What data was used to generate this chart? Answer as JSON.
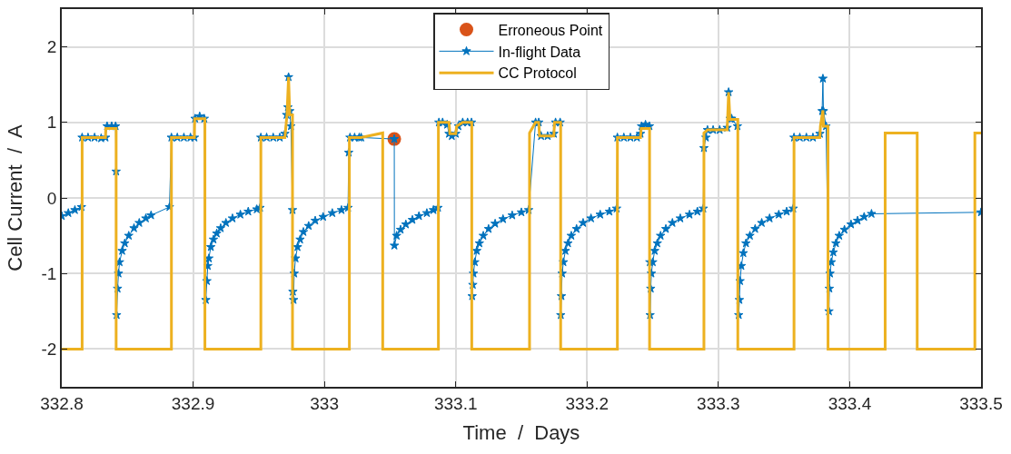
{
  "chart_data": {
    "type": "line",
    "xlabel": "Time  /  Days",
    "ylabel": "Cell Current  /  A",
    "xlim": [
      332.8,
      333.5
    ],
    "xticks": [
      332.8,
      332.9,
      333,
      333.1,
      333.2,
      333.3,
      333.4,
      333.5
    ],
    "ylim": [
      -2.5,
      2.5
    ],
    "yticks": [
      -2,
      -1,
      0,
      1,
      2
    ],
    "grid": true,
    "legend": "top",
    "series": [
      {
        "name": "Erroneous Point",
        "type": "scatter",
        "marker": "circle",
        "color": "#d95319",
        "x": [
          333.0532
        ],
        "values": [
          0.78
        ]
      },
      {
        "name": "In-flight Data",
        "marker": "star",
        "line_style": "solid",
        "color": "#0072bd",
        "x": [
          332.8,
          332.805,
          332.81,
          332.815,
          332.8155,
          332.82,
          332.825,
          332.83,
          332.8333,
          332.8345,
          332.838,
          332.841,
          332.8414,
          332.8418,
          332.8425,
          332.8432,
          332.844,
          332.846,
          332.848,
          332.851,
          332.855,
          332.859,
          332.864,
          332.868,
          332.882,
          332.8835,
          332.888,
          332.893,
          332.898,
          332.901,
          332.9015,
          332.905,
          332.9085,
          332.9097,
          332.9105,
          332.9112,
          332.912,
          332.9135,
          332.9155,
          332.918,
          332.921,
          332.925,
          332.93,
          332.936,
          332.942,
          332.9485,
          332.951,
          332.9516,
          332.956,
          332.961,
          332.966,
          332.9699,
          332.9712,
          332.9722,
          332.9727,
          332.9736,
          332.9745,
          332.9757,
          332.976,
          332.9765,
          332.977,
          332.978,
          332.9795,
          332.9815,
          332.984,
          332.988,
          332.993,
          332.999,
          333.006,
          333.013,
          333.018,
          333.0185,
          333.0195,
          333.023,
          333.0265,
          333.028,
          333.0532,
          333.0533,
          333.055,
          333.058,
          333.062,
          333.067,
          333.072,
          333.078,
          333.083,
          333.0865,
          333.0872,
          333.09,
          333.0935,
          333.0949,
          333.097,
          333.1,
          333.102,
          333.1053,
          333.109,
          333.112,
          333.1125,
          333.113,
          333.1135,
          333.1145,
          333.116,
          333.118,
          333.121,
          333.125,
          333.13,
          333.136,
          333.143,
          333.15,
          333.1555,
          333.1608,
          333.1632,
          333.165,
          333.17,
          333.1747,
          333.176,
          333.1795,
          333.18,
          333.1805,
          333.181,
          333.182,
          333.1835,
          333.1855,
          333.188,
          333.192,
          333.197,
          333.203,
          333.21,
          333.217,
          333.2225,
          333.2231,
          333.228,
          333.233,
          333.238,
          333.2407,
          333.2415,
          333.2445,
          333.2475,
          333.2478,
          333.248,
          333.2485,
          333.249,
          333.25,
          333.2515,
          333.2535,
          333.256,
          333.26,
          333.265,
          333.271,
          333.278,
          333.284,
          333.2885,
          333.289,
          333.2905,
          333.2917,
          333.296,
          333.301,
          333.3067,
          333.3078,
          333.309,
          333.3101,
          333.3145,
          333.3155,
          333.316,
          333.3165,
          333.3175,
          333.319,
          333.321,
          333.324,
          333.328,
          333.333,
          333.339,
          333.346,
          333.352,
          333.357,
          333.3576,
          333.362,
          333.367,
          333.372,
          333.3773,
          333.379,
          333.3796,
          333.38,
          333.382,
          333.3842,
          333.3845,
          333.385,
          333.386,
          333.3875,
          333.3895,
          333.392,
          333.396,
          333.401,
          333.406,
          333.411,
          333.4166,
          333.5
        ],
        "values": [
          -0.24,
          -0.2,
          -0.16,
          -0.12,
          0.8,
          0.8,
          0.8,
          0.79,
          0.8,
          0.95,
          0.95,
          0.95,
          0.35,
          -1.55,
          -1.2,
          -1.0,
          -0.85,
          -0.7,
          -0.6,
          -0.5,
          -0.4,
          -0.33,
          -0.27,
          -0.23,
          -0.12,
          0.8,
          0.8,
          0.8,
          0.8,
          0.8,
          1.05,
          1.08,
          1.05,
          -1.35,
          -1.1,
          -0.9,
          -0.8,
          -0.65,
          -0.55,
          -0.47,
          -0.4,
          -0.33,
          -0.27,
          -0.22,
          -0.18,
          -0.15,
          -0.13,
          0.8,
          0.8,
          0.8,
          0.8,
          0.85,
          1.1,
          1.2,
          1.6,
          1.15,
          0.95,
          -0.16,
          -1.24,
          -1.35,
          -1.0,
          -0.8,
          -0.65,
          -0.55,
          -0.45,
          -0.37,
          -0.3,
          -0.25,
          -0.2,
          -0.16,
          -0.13,
          0.6,
          0.8,
          0.8,
          0.8,
          0.8,
          0.78,
          -0.63,
          -0.5,
          -0.42,
          -0.35,
          -0.29,
          -0.24,
          -0.2,
          -0.16,
          -0.13,
          1.0,
          1.0,
          0.97,
          0.85,
          0.82,
          0.85,
          0.95,
          1.0,
          1.0,
          1.0,
          -1.3,
          -1.15,
          -1.0,
          -0.85,
          -0.7,
          -0.6,
          -0.5,
          -0.41,
          -0.34,
          -0.28,
          -0.23,
          -0.19,
          -0.16,
          1.0,
          1.0,
          0.82,
          0.82,
          0.85,
          1.0,
          1.0,
          -1.55,
          -1.3,
          -1.0,
          -0.85,
          -0.7,
          -0.6,
          -0.5,
          -0.41,
          -0.33,
          -0.27,
          -0.22,
          -0.18,
          -0.14,
          0.8,
          0.8,
          0.8,
          0.8,
          0.85,
          0.95,
          0.97,
          0.95,
          -0.85,
          -1.55,
          -1.2,
          -1.0,
          -0.85,
          -0.7,
          -0.6,
          -0.5,
          -0.41,
          -0.33,
          -0.27,
          -0.22,
          -0.18,
          -0.14,
          0.66,
          0.8,
          0.9,
          0.9,
          0.9,
          0.93,
          1.4,
          1.05,
          1.05,
          0.95,
          -1.55,
          -1.35,
          -1.1,
          -0.9,
          -0.73,
          -0.6,
          -0.5,
          -0.41,
          -0.33,
          -0.27,
          -0.22,
          -0.18,
          -0.14,
          0.8,
          0.8,
          0.8,
          0.8,
          0.85,
          1.15,
          1.58,
          1.15,
          0.95,
          -1.5,
          -1.2,
          -1.0,
          -0.85,
          -0.72,
          -0.6,
          -0.5,
          -0.42,
          -0.35,
          -0.3,
          -0.25,
          -0.21,
          -0.19
        ]
      },
      {
        "name": "CC Protocol",
        "marker": "none",
        "line_style": "solid",
        "color": "#edb120",
        "x": [
          332.8,
          332.8155,
          332.8155,
          332.8333,
          332.8335,
          332.8414,
          332.8414,
          332.8835,
          332.8835,
          332.901,
          332.9012,
          332.909,
          332.909,
          332.9516,
          332.9516,
          332.9699,
          332.9715,
          332.9727,
          332.9736,
          332.9757,
          332.9757,
          333.019,
          333.019,
          333.0278,
          333.0444,
          333.0444,
          333.0868,
          333.0868,
          333.0949,
          333.0955,
          333.1,
          333.1007,
          333.1053,
          333.1122,
          333.1122,
          333.1562,
          333.1562,
          333.1608,
          333.1632,
          333.1638,
          333.1747,
          333.1752,
          333.1799,
          333.1799,
          333.2231,
          333.2231,
          333.2407,
          333.2412,
          333.2476,
          333.2476,
          333.289,
          333.289,
          333.2917,
          333.3067,
          333.3078,
          333.3088,
          333.3148,
          333.3148,
          333.3576,
          333.3576,
          333.3773,
          333.3777,
          333.3796,
          333.38,
          333.3835,
          333.3835,
          333.427,
          333.427,
          333.4514,
          333.4514,
          333.4953,
          333.4953,
          333.5
        ],
        "values": [
          -2,
          -2,
          0.8,
          0.8,
          0.92,
          0.92,
          -2,
          -2,
          0.8,
          0.8,
          1.05,
          1.05,
          -2,
          -2,
          0.8,
          0.8,
          1.1,
          1.6,
          1.1,
          1.1,
          -2,
          -2,
          0.8,
          0.8,
          0.86,
          -2,
          -2,
          1.0,
          1.0,
          0.85,
          0.85,
          0.95,
          1.0,
          1.0,
          -2,
          -2,
          0.86,
          1.0,
          1.0,
          0.82,
          0.82,
          1.0,
          1.0,
          -2,
          -2,
          0.8,
          0.8,
          0.92,
          0.92,
          -2,
          -2,
          0.86,
          0.9,
          0.9,
          1.4,
          1.04,
          1.04,
          -2,
          -2,
          0.8,
          0.8,
          0.95,
          1.16,
          0.95,
          0.95,
          -2,
          -2,
          0.86,
          0.86,
          -2,
          -2,
          0.86,
          0.86
        ]
      }
    ]
  }
}
